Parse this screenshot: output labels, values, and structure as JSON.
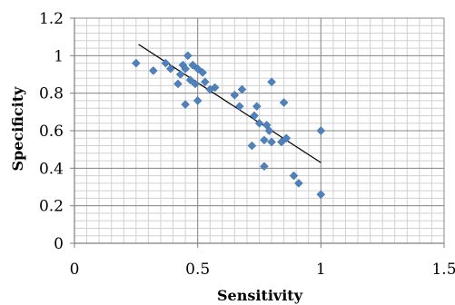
{
  "chart_data": {
    "type": "scatter",
    "title": "",
    "xlabel": "Sensitivity",
    "ylabel": "Specificity",
    "xlim": [
      0,
      1.5
    ],
    "ylim": [
      0,
      1.2
    ],
    "x_ticks": [
      0,
      0.5,
      1,
      1.5
    ],
    "y_ticks": [
      0,
      0.2,
      0.4,
      0.6,
      0.8,
      1,
      1.2
    ],
    "x_tick_labels": [
      "0",
      "0.5",
      "1",
      "1.5"
    ],
    "y_tick_labels": [
      "0",
      "0.2",
      "0.4",
      "0.6",
      "0.8",
      "1",
      "1.2"
    ],
    "x_minor_step": 0.05,
    "y_minor_step": 0.04,
    "grid": true,
    "legend": "none",
    "series": [
      {
        "marker": "diamond",
        "color": "#4f81bd",
        "x": [
          0.25,
          0.32,
          0.37,
          0.39,
          0.42,
          0.43,
          0.44,
          0.45,
          0.45,
          0.46,
          0.47,
          0.48,
          0.49,
          0.5,
          0.5,
          0.52,
          0.53,
          0.55,
          0.57,
          0.65,
          0.67,
          0.68,
          0.72,
          0.73,
          0.74,
          0.75,
          0.77,
          0.77,
          0.78,
          0.79,
          0.8,
          0.8,
          0.84,
          0.85,
          0.86,
          0.89,
          0.91,
          1.0,
          1.0
        ],
        "y": [
          0.96,
          0.92,
          0.96,
          0.93,
          0.85,
          0.9,
          0.95,
          0.74,
          0.93,
          1.0,
          0.87,
          0.95,
          0.85,
          0.76,
          0.93,
          0.91,
          0.86,
          0.82,
          0.83,
          0.79,
          0.73,
          0.82,
          0.52,
          0.68,
          0.73,
          0.64,
          0.41,
          0.55,
          0.63,
          0.6,
          0.86,
          0.54,
          0.54,
          0.75,
          0.56,
          0.36,
          0.32,
          0.6,
          0.26
        ]
      }
    ],
    "trendline": {
      "type": "linear",
      "x": [
        0.26,
        1.0
      ],
      "y": [
        1.06,
        0.43
      ],
      "color": "#000000"
    }
  }
}
